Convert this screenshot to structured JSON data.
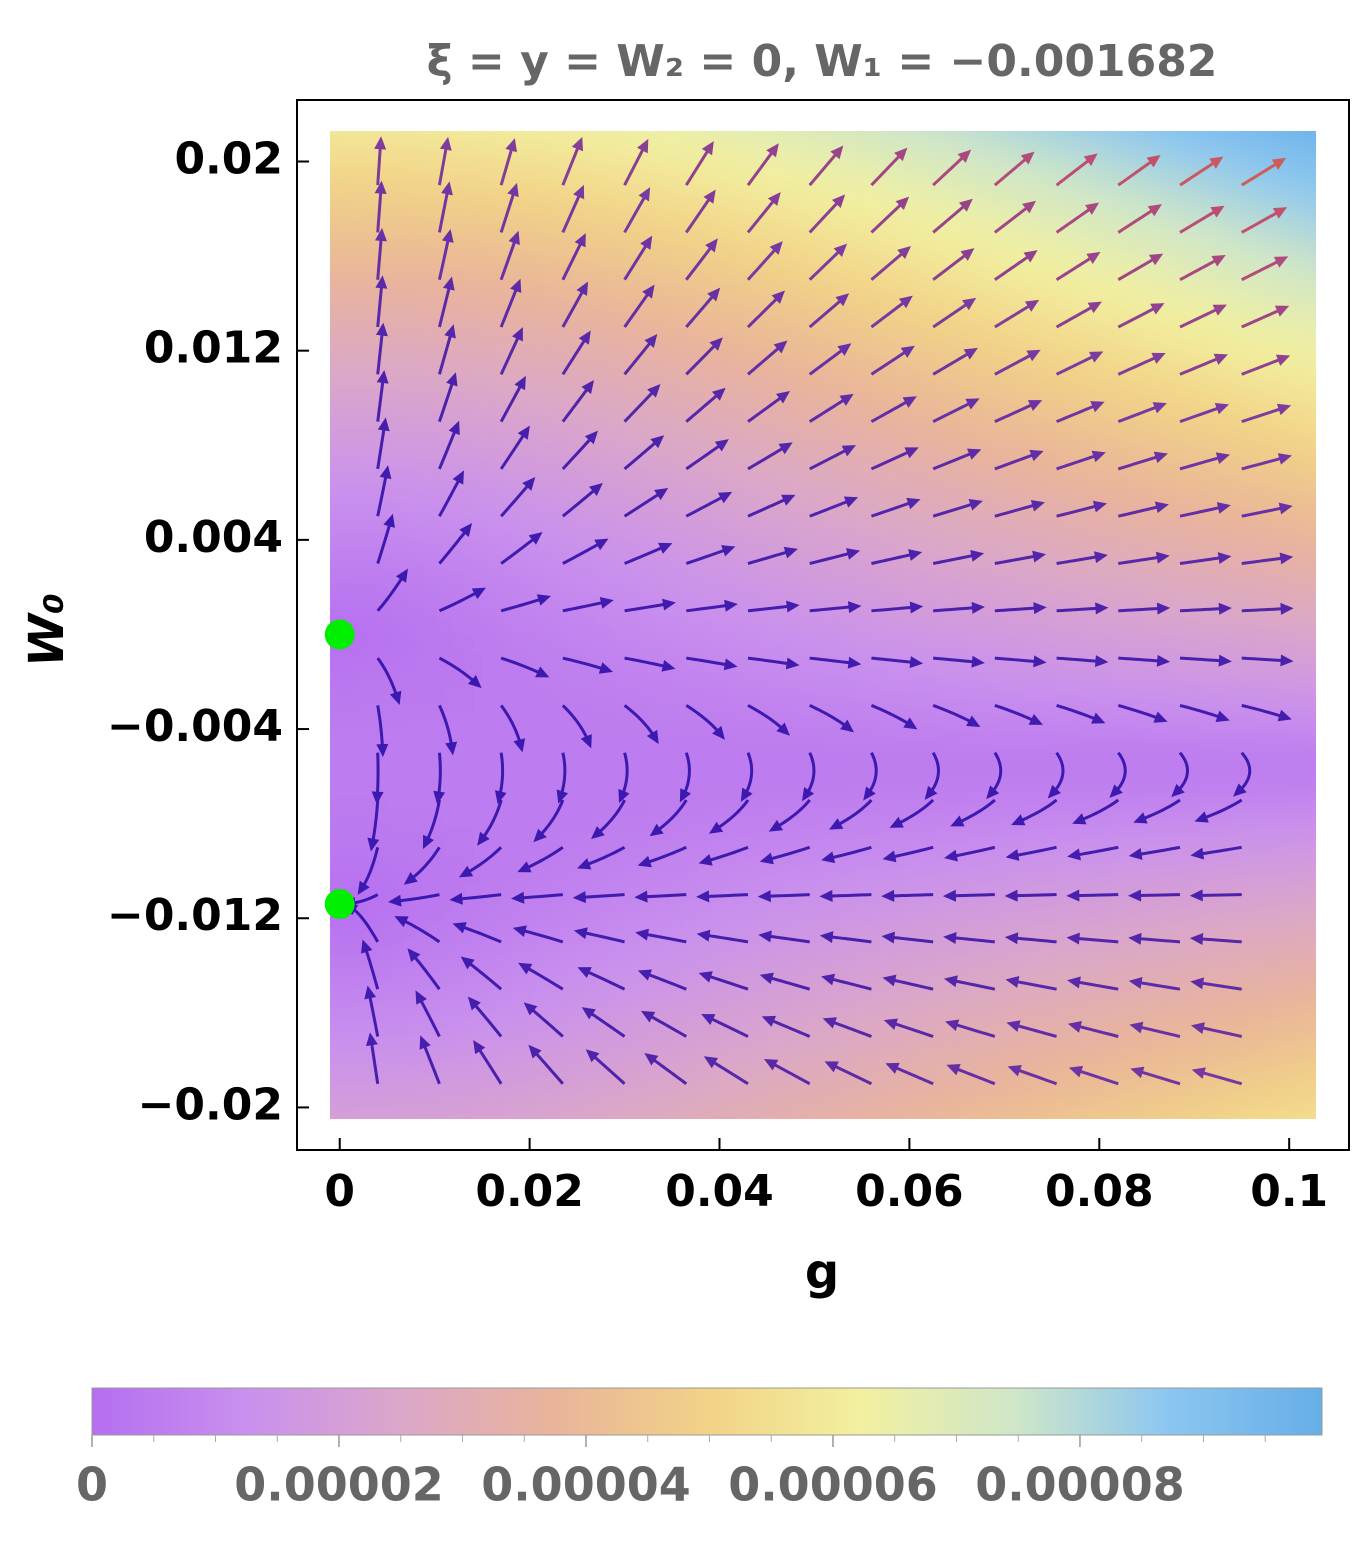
{
  "chart_data": {
    "type": "stream",
    "title": "ξ = y = W₂ = 0, W₁ = −0.001682",
    "x_label": "g",
    "y_label": "W₀",
    "xlim": [
      -0.0045,
      0.1063
    ],
    "ylim": [
      -0.0218,
      0.0226
    ],
    "xticks": [
      0,
      0.02,
      0.04,
      0.06,
      0.08,
      0.1
    ],
    "yticks": [
      {
        "value": 0.02,
        "label": "0.02"
      },
      {
        "value": 0.012,
        "label": "0.012"
      },
      {
        "value": 0.004,
        "label": "0.004"
      },
      {
        "value": -0.004,
        "label": "−0.004"
      },
      {
        "value": -0.012,
        "label": "−0.012"
      },
      {
        "value": -0.02,
        "label": "−0.02"
      }
    ],
    "fixed_points": {
      "color": "#00ee00",
      "x": [
        0,
        0
      ],
      "y": [
        0,
        -0.0114
      ]
    },
    "colorbar": {
      "range": [
        0,
        9.96e-05
      ],
      "ticks": [
        0,
        2e-05,
        4e-05,
        6e-05,
        8e-05
      ],
      "minor_ticks": [
        5e-06,
        1e-05,
        1.5e-05,
        2.5e-05,
        3e-05,
        3.5e-05,
        4.5e-05,
        5e-05,
        5.5e-05,
        6.5e-05,
        7e-05,
        7.5e-05,
        8.5e-05,
        9e-05,
        9.5e-05
      ],
      "colors": [
        "#b56ef0",
        "#c990ee",
        "#dba7c9",
        "#e9b49a",
        "#f2d287",
        "#f2f0a0",
        "#cfe6c8",
        "#8cc6f0",
        "#66aee8"
      ]
    },
    "arrow_colors": [
      "#3a18b0",
      "#7a3aa0",
      "#c05070",
      "#f07a20"
    ]
  }
}
